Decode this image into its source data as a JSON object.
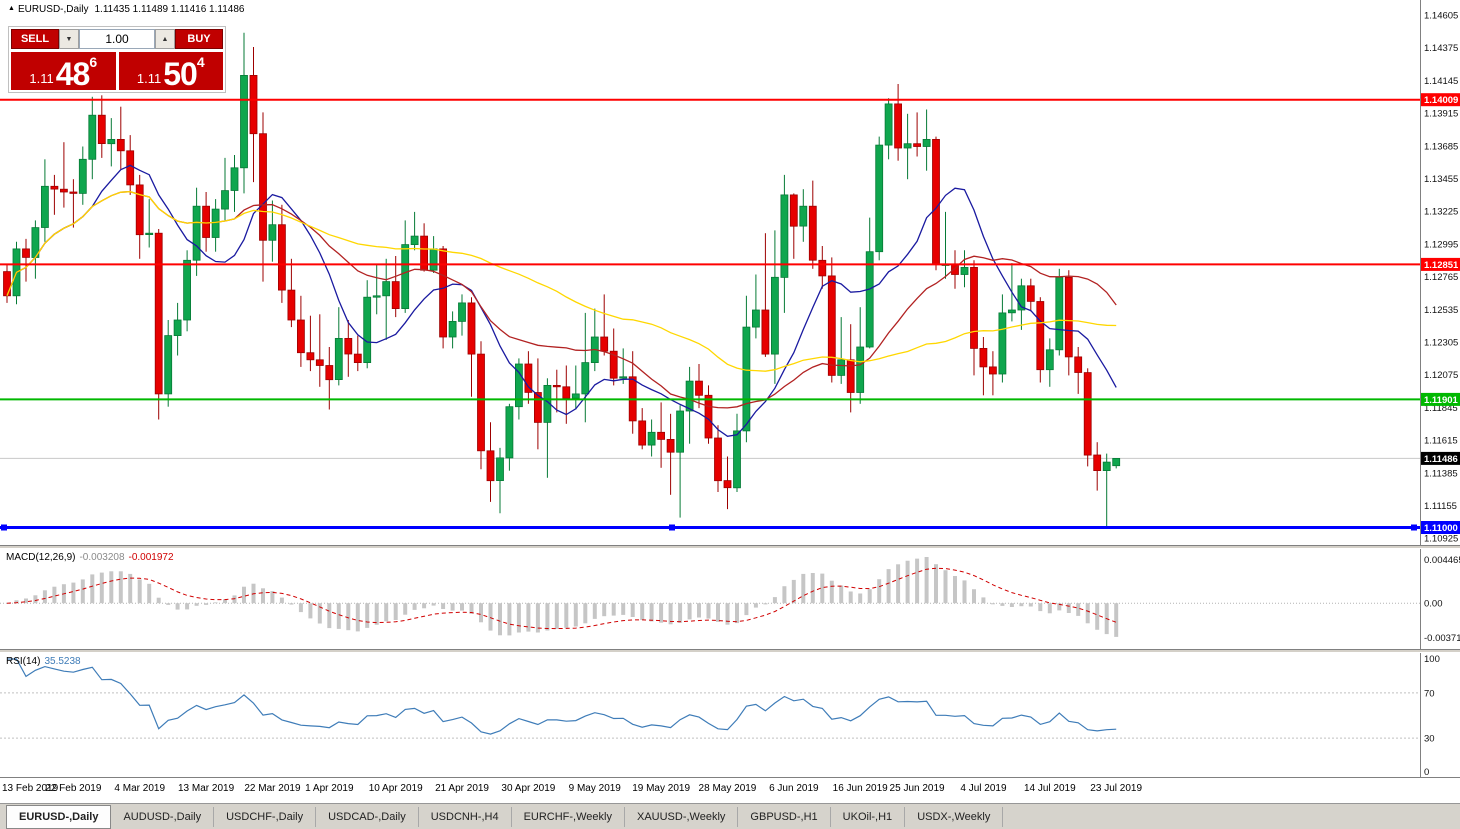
{
  "title_bar": {
    "arrow": "▲",
    "symbol": "EURUSD-,Daily",
    "ohlc": "1.11435 1.11489 1.11416 1.11486"
  },
  "trade_panel": {
    "sell_label": "SELL",
    "buy_label": "BUY",
    "volume": "1.00",
    "down_arrow": "▼",
    "up_arrow": "▲",
    "sell_price": {
      "prefix": "1.11",
      "big": "48",
      "sup": "6"
    },
    "buy_price": {
      "prefix": "1.11",
      "big": "50",
      "sup": "4"
    },
    "button_color": "#c00000"
  },
  "price_axis_labels": [
    "1.14605",
    "1.14375",
    "1.14145",
    "1.13915",
    "1.13685",
    "1.13455",
    "1.13225",
    "1.12995",
    "1.12765",
    "1.12535",
    "1.12305",
    "1.12075",
    "1.11845",
    "1.11615",
    "1.11385",
    "1.11155",
    "1.10925"
  ],
  "hlines": [
    {
      "price": 1.14009,
      "label": "1.14009",
      "color": "#ff0000",
      "width": 2
    },
    {
      "price": 1.12851,
      "label": "1.12851",
      "color": "#ff0000",
      "width": 2
    },
    {
      "price": 1.11901,
      "label": "1.11901",
      "color": "#00b800",
      "width": 2
    },
    {
      "price": 1.11,
      "label": "1.11000",
      "color": "#0000ff",
      "width": 3,
      "selected": true
    }
  ],
  "current_price": {
    "price": 1.11486,
    "label": "1.11486",
    "tag_color": "#000000"
  },
  "chart_data": {
    "type": "candlestick",
    "symbol": "EURUSD",
    "timeframe": "Daily",
    "title": "EURUSD-,Daily",
    "up_color": "#0fa64e",
    "up_border": "#067a36",
    "down_color": "#e60000",
    "down_border": "#9d0000",
    "price_range": {
      "top": 1.147105,
      "bottom": 1.108772
    },
    "x_labels": [
      "13 Feb 2019",
      "22 Feb 2019",
      "4 Mar 2019",
      "13 Mar 2019",
      "22 Mar 2019",
      "1 Apr 2019",
      "10 Apr 2019",
      "21 Apr 2019",
      "30 Apr 2019",
      "9 May 2019",
      "19 May 2019",
      "28 May 2019",
      "6 Jun 2019",
      "16 Jun 2019",
      "25 Jun 2019",
      "4 Jul 2019",
      "14 Jul 2019",
      "23 Jul 2019"
    ],
    "x_label_indices": [
      0,
      7,
      14,
      21,
      28,
      34,
      41,
      48,
      55,
      62,
      69,
      76,
      83,
      90,
      96,
      103,
      110,
      117
    ],
    "moving_averages": [
      {
        "period": 10,
        "color": "#1a1aa0"
      },
      {
        "period": 25,
        "color": "#b22222"
      },
      {
        "period": 50,
        "color": "#ffd700"
      }
    ],
    "candles": [
      [
        1.128,
        1.1285,
        1.1258,
        1.1263
      ],
      [
        1.1263,
        1.1301,
        1.1257,
        1.1296
      ],
      [
        1.1296,
        1.1303,
        1.1273,
        1.129
      ],
      [
        1.129,
        1.1316,
        1.1275,
        1.1311
      ],
      [
        1.1311,
        1.1359,
        1.1301,
        1.134
      ],
      [
        1.134,
        1.1348,
        1.132,
        1.1338
      ],
      [
        1.1338,
        1.1371,
        1.1325,
        1.1336
      ],
      [
        1.1336,
        1.1345,
        1.1311,
        1.1335
      ],
      [
        1.1335,
        1.1368,
        1.1327,
        1.1359
      ],
      [
        1.1359,
        1.1403,
        1.1345,
        1.139
      ],
      [
        1.139,
        1.1404,
        1.136,
        1.137
      ],
      [
        1.137,
        1.1388,
        1.1354,
        1.1373
      ],
      [
        1.1373,
        1.1396,
        1.1352,
        1.1365
      ],
      [
        1.1365,
        1.1376,
        1.1334,
        1.1341
      ],
      [
        1.1341,
        1.1348,
        1.1289,
        1.1306
      ],
      [
        1.1306,
        1.1331,
        1.1297,
        1.1307
      ],
      [
        1.1307,
        1.131,
        1.1176,
        1.1194
      ],
      [
        1.1194,
        1.1246,
        1.1185,
        1.1235
      ],
      [
        1.1235,
        1.1258,
        1.1221,
        1.1246
      ],
      [
        1.1246,
        1.1295,
        1.1238,
        1.1288
      ],
      [
        1.1288,
        1.1339,
        1.1277,
        1.1326
      ],
      [
        1.1326,
        1.1336,
        1.1294,
        1.1304
      ],
      [
        1.1304,
        1.1331,
        1.1294,
        1.1324
      ],
      [
        1.1324,
        1.136,
        1.1316,
        1.1337
      ],
      [
        1.1337,
        1.1362,
        1.1322,
        1.1353
      ],
      [
        1.1353,
        1.1448,
        1.1335,
        1.1418
      ],
      [
        1.1418,
        1.1438,
        1.1343,
        1.1377
      ],
      [
        1.1377,
        1.1392,
        1.1273,
        1.1302
      ],
      [
        1.1302,
        1.133,
        1.1287,
        1.1313
      ],
      [
        1.1313,
        1.1327,
        1.1258,
        1.1267
      ],
      [
        1.1267,
        1.1289,
        1.1241,
        1.1246
      ],
      [
        1.1246,
        1.1263,
        1.1213,
        1.1223
      ],
      [
        1.1223,
        1.1249,
        1.121,
        1.1218
      ],
      [
        1.1218,
        1.125,
        1.1199,
        1.1214
      ],
      [
        1.1214,
        1.1227,
        1.1183,
        1.1204
      ],
      [
        1.1204,
        1.1255,
        1.12,
        1.1233
      ],
      [
        1.1233,
        1.1246,
        1.1206,
        1.1222
      ],
      [
        1.1222,
        1.1235,
        1.121,
        1.1216
      ],
      [
        1.1216,
        1.1274,
        1.1212,
        1.1262
      ],
      [
        1.1262,
        1.1285,
        1.125,
        1.1263
      ],
      [
        1.1263,
        1.1289,
        1.1232,
        1.1273
      ],
      [
        1.1273,
        1.1291,
        1.1248,
        1.1254
      ],
      [
        1.1254,
        1.1316,
        1.1251,
        1.1299
      ],
      [
        1.1299,
        1.1322,
        1.1295,
        1.1305
      ],
      [
        1.1305,
        1.1314,
        1.128,
        1.1281
      ],
      [
        1.1281,
        1.1305,
        1.1279,
        1.1296
      ],
      [
        1.1296,
        1.1298,
        1.1226,
        1.1234
      ],
      [
        1.1234,
        1.1252,
        1.1226,
        1.1245
      ],
      [
        1.1245,
        1.1264,
        1.1235,
        1.1258
      ],
      [
        1.1258,
        1.1262,
        1.1192,
        1.1222
      ],
      [
        1.1222,
        1.1231,
        1.1141,
        1.1154
      ],
      [
        1.1154,
        1.1174,
        1.1118,
        1.1133
      ],
      [
        1.1133,
        1.1156,
        1.111,
        1.1149
      ],
      [
        1.1149,
        1.1187,
        1.114,
        1.1185
      ],
      [
        1.1185,
        1.1219,
        1.1176,
        1.1215
      ],
      [
        1.1215,
        1.1224,
        1.1187,
        1.1195
      ],
      [
        1.1195,
        1.1219,
        1.1155,
        1.1174
      ],
      [
        1.1174,
        1.1205,
        1.1135,
        1.12
      ],
      [
        1.12,
        1.1211,
        1.1181,
        1.1199
      ],
      [
        1.1199,
        1.1214,
        1.1173,
        1.1191
      ],
      [
        1.1191,
        1.1214,
        1.1183,
        1.1194
      ],
      [
        1.1194,
        1.1251,
        1.1174,
        1.1216
      ],
      [
        1.1216,
        1.1254,
        1.121,
        1.1234
      ],
      [
        1.1234,
        1.1264,
        1.1221,
        1.1224
      ],
      [
        1.1224,
        1.124,
        1.12,
        1.1205
      ],
      [
        1.1205,
        1.1226,
        1.1201,
        1.1206
      ],
      [
        1.1206,
        1.1224,
        1.1166,
        1.1175
      ],
      [
        1.1175,
        1.1184,
        1.1155,
        1.1158
      ],
      [
        1.1158,
        1.1176,
        1.115,
        1.1167
      ],
      [
        1.1167,
        1.1188,
        1.1142,
        1.1162
      ],
      [
        1.1162,
        1.118,
        1.1123,
        1.1153
      ],
      [
        1.1153,
        1.1186,
        1.1107,
        1.1182
      ],
      [
        1.1182,
        1.1213,
        1.1159,
        1.1203
      ],
      [
        1.1203,
        1.1215,
        1.1184,
        1.1193
      ],
      [
        1.1193,
        1.12,
        1.1159,
        1.1163
      ],
      [
        1.1163,
        1.1172,
        1.1125,
        1.1133
      ],
      [
        1.1133,
        1.115,
        1.1113,
        1.1128
      ],
      [
        1.1128,
        1.118,
        1.1125,
        1.1168
      ],
      [
        1.1168,
        1.1263,
        1.116,
        1.1241
      ],
      [
        1.1241,
        1.1278,
        1.1233,
        1.1253
      ],
      [
        1.1253,
        1.1307,
        1.122,
        1.1222
      ],
      [
        1.1222,
        1.1309,
        1.1201,
        1.1276
      ],
      [
        1.1276,
        1.1348,
        1.1251,
        1.1334
      ],
      [
        1.1334,
        1.1335,
        1.1289,
        1.1312
      ],
      [
        1.1312,
        1.1338,
        1.1301,
        1.1326
      ],
      [
        1.1326,
        1.1344,
        1.1282,
        1.1288
      ],
      [
        1.1288,
        1.1298,
        1.1268,
        1.1277
      ],
      [
        1.1277,
        1.129,
        1.1202,
        1.1207
      ],
      [
        1.1207,
        1.1248,
        1.1201,
        1.1218
      ],
      [
        1.1218,
        1.1243,
        1.1181,
        1.1195
      ],
      [
        1.1195,
        1.1255,
        1.1187,
        1.1227
      ],
      [
        1.1227,
        1.1318,
        1.1226,
        1.1294
      ],
      [
        1.1294,
        1.1375,
        1.1288,
        1.1369
      ],
      [
        1.1369,
        1.1402,
        1.1359,
        1.1398
      ],
      [
        1.1398,
        1.1412,
        1.1358,
        1.1367
      ],
      [
        1.1367,
        1.1391,
        1.1345,
        1.137
      ],
      [
        1.137,
        1.1392,
        1.1361,
        1.1368
      ],
      [
        1.1368,
        1.1394,
        1.1351,
        1.1373
      ],
      [
        1.1373,
        1.1375,
        1.1281,
        1.1285
      ],
      [
        1.1285,
        1.1322,
        1.1275,
        1.1285
      ],
      [
        1.1285,
        1.1295,
        1.1268,
        1.1278
      ],
      [
        1.1278,
        1.1295,
        1.1269,
        1.1283
      ],
      [
        1.1283,
        1.1288,
        1.1207,
        1.1226
      ],
      [
        1.1226,
        1.1234,
        1.1193,
        1.1213
      ],
      [
        1.1213,
        1.1224,
        1.1193,
        1.1208
      ],
      [
        1.1208,
        1.1264,
        1.1202,
        1.1251
      ],
      [
        1.1251,
        1.1286,
        1.1245,
        1.1253
      ],
      [
        1.1253,
        1.1275,
        1.1239,
        1.127
      ],
      [
        1.127,
        1.1275,
        1.1252,
        1.1259
      ],
      [
        1.1259,
        1.1262,
        1.1202,
        1.1211
      ],
      [
        1.1211,
        1.1233,
        1.1199,
        1.1225
      ],
      [
        1.1225,
        1.1282,
        1.1221,
        1.1276
      ],
      [
        1.1276,
        1.1281,
        1.1207,
        1.122
      ],
      [
        1.122,
        1.1227,
        1.1194,
        1.1209
      ],
      [
        1.1209,
        1.1212,
        1.1143,
        1.1151
      ],
      [
        1.1151,
        1.116,
        1.1126,
        1.114
      ],
      [
        1.114,
        1.1152,
        1.1101,
        1.1146
      ],
      [
        1.11435,
        1.11489,
        1.11416,
        1.11486
      ]
    ]
  },
  "macd_panel": {
    "name": "MACD(12,26,9)",
    "main_value": "-0.003208",
    "signal_value": "-0.001972",
    "axis_labels": [
      "0.004465",
      "0.00",
      "-0.003710"
    ],
    "range": {
      "max": 0.004465,
      "min": -0.00371
    },
    "params": {
      "fast": 12,
      "slow": 26,
      "signal": 9
    },
    "histogram_color": "#c6c6c6",
    "signal_color": "#d00000"
  },
  "rsi_panel": {
    "name": "RSI(14)",
    "value": "35.5238",
    "period": 14,
    "axis_labels": [
      "100",
      "70",
      "30",
      "0"
    ],
    "levels": [
      70,
      30
    ],
    "line_color": "#3e7cb8"
  },
  "tabs": [
    {
      "label": "EURUSD-,Daily",
      "active": true
    },
    {
      "label": "AUDUSD-,Daily",
      "active": false
    },
    {
      "label": "USDCHF-,Daily",
      "active": false
    },
    {
      "label": "USDCAD-,Daily",
      "active": false
    },
    {
      "label": "USDCNH-,H4",
      "active": false
    },
    {
      "label": "EURCHF-,Weekly",
      "active": false
    },
    {
      "label": "XAUUSD-,Weekly",
      "active": false
    },
    {
      "label": "GBPUSD-,H1",
      "active": false
    },
    {
      "label": "UKOil-,H1",
      "active": false
    },
    {
      "label": "USDX-,Weekly",
      "active": false
    }
  ]
}
